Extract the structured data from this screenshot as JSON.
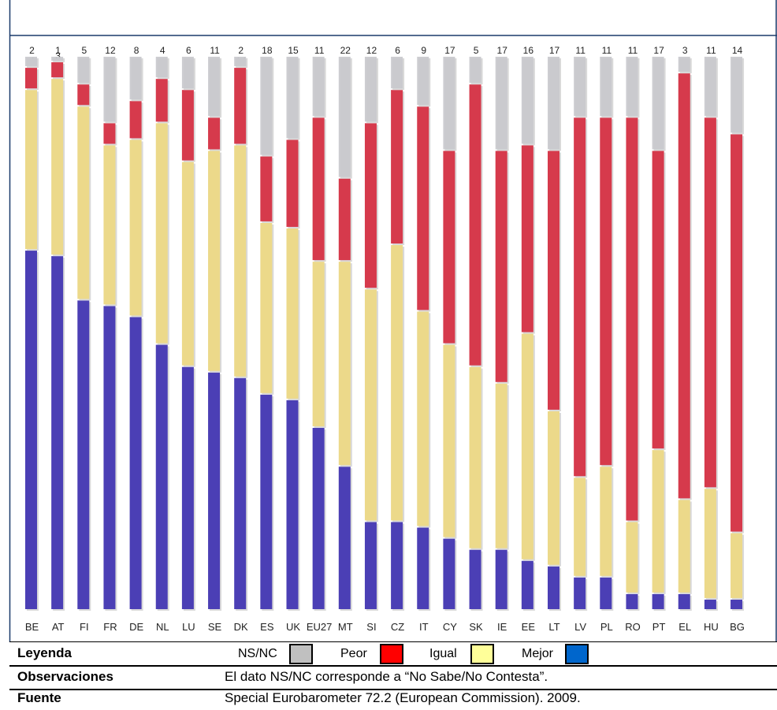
{
  "chart_data": {
    "type": "bar",
    "stacked": true,
    "ylim": [
      0,
      100
    ],
    "categories": [
      "BE",
      "AT",
      "FI",
      "FR",
      "DE",
      "NL",
      "LU",
      "SE",
      "DK",
      "ES",
      "UK",
      "EU27",
      "MT",
      "SI",
      "CZ",
      "IT",
      "CY",
      "SK",
      "IE",
      "EE",
      "LT",
      "LV",
      "PL",
      "RO",
      "PT",
      "EL",
      "HU",
      "BG"
    ],
    "series": [
      {
        "name": "Mejor",
        "color": "#4b3fb5",
        "values": [
          65,
          64,
          56,
          55,
          53,
          48,
          44,
          43,
          42,
          39,
          38,
          33,
          26,
          16,
          16,
          15,
          13,
          11,
          11,
          9,
          8,
          6,
          6,
          3,
          3,
          3,
          2,
          2
        ]
      },
      {
        "name": "Igual",
        "color": "#ecd98a",
        "values": [
          29,
          32,
          35,
          29,
          32,
          40,
          37,
          40,
          42,
          31,
          31,
          30,
          37,
          42,
          50,
          39,
          35,
          33,
          30,
          41,
          28,
          18,
          20,
          13,
          26,
          17,
          20,
          12
        ]
      },
      {
        "name": "Peor",
        "color": "#d63a4c",
        "values": [
          4,
          3,
          4,
          4,
          7,
          8,
          13,
          6,
          14,
          12,
          16,
          26,
          15,
          30,
          28,
          37,
          35,
          51,
          42,
          34,
          47,
          65,
          63,
          73,
          54,
          77,
          67,
          72
        ]
      },
      {
        "name": "NS/NC",
        "color": "#c8c8cc",
        "values": [
          2,
          1,
          5,
          12,
          8,
          4,
          6,
          11,
          2,
          18,
          15,
          11,
          22,
          12,
          6,
          9,
          17,
          5,
          17,
          16,
          17,
          11,
          11,
          11,
          17,
          3,
          11,
          14
        ]
      }
    ]
  },
  "legend": {
    "title": "Leyenda",
    "items": [
      {
        "label": "NS/NC",
        "color": "#c0c0c0"
      },
      {
        "label": "Peor",
        "color": "#ff0000"
      },
      {
        "label": "Igual",
        "color": "#ffff99"
      },
      {
        "label": "Mejor",
        "color": "#0066cc"
      }
    ]
  },
  "observaciones": {
    "label": "Observaciones",
    "text": "El dato NS/NC corresponde a “No Sabe/No Contesta”."
  },
  "fuente": {
    "label": "Fuente",
    "text": "Special Eurobarometer 72.2  (European Commission). 2009."
  }
}
